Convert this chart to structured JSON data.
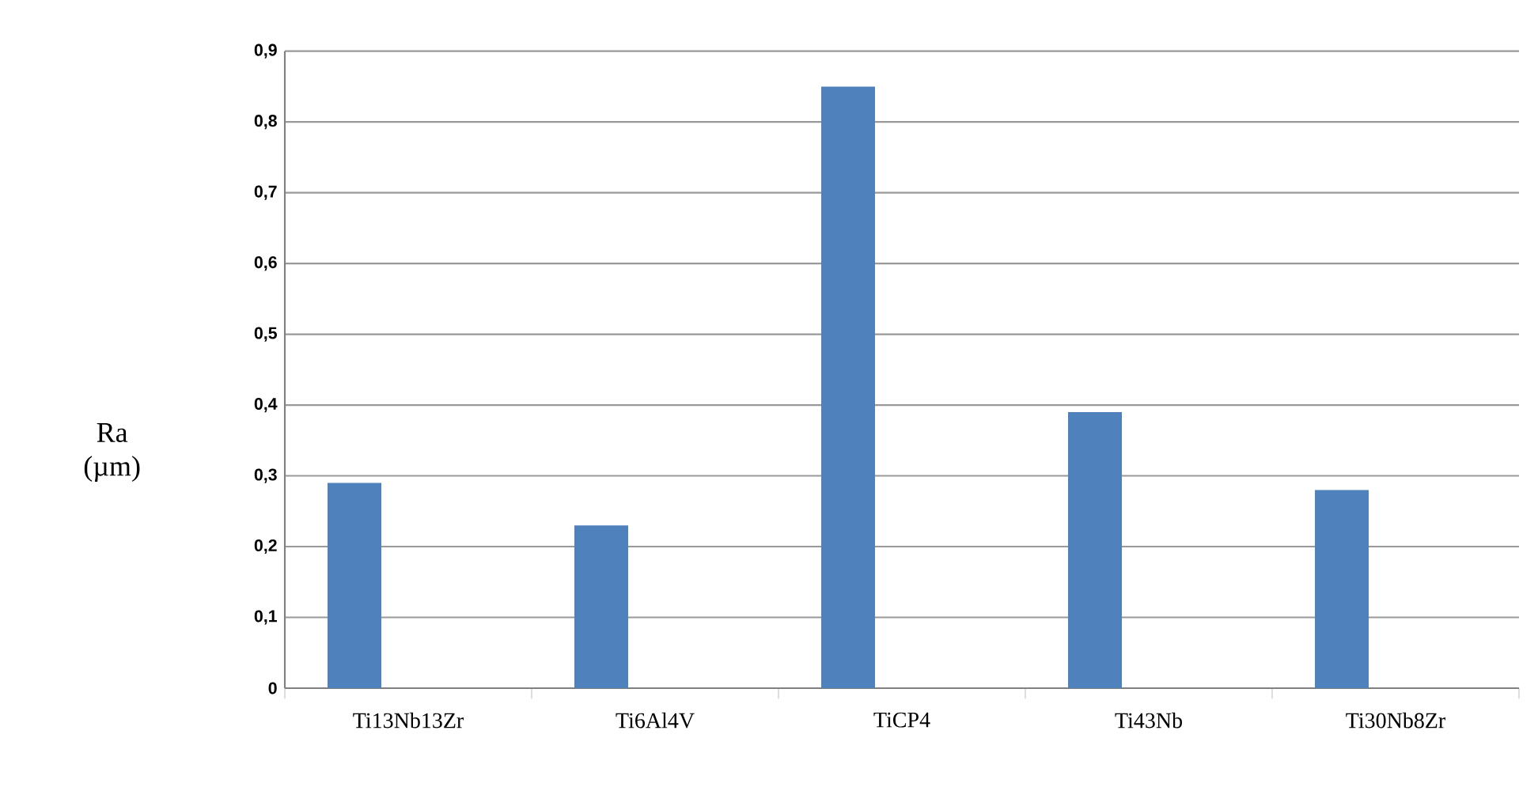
{
  "chart_data": {
    "type": "bar",
    "ylabel": "Ra (µm)",
    "categories": [
      "Ti13Nb13Zr",
      "Ti6Al4V",
      "TiCP4",
      "Ti43Nb",
      "Ti30Nb8Zr"
    ],
    "values": [
      0.29,
      0.23,
      0.85,
      0.39,
      0.28
    ],
    "color": "#4f81bd",
    "ylim": [
      0,
      0.9
    ],
    "yticks": [
      0,
      {
        "value": 0.1,
        "label": "0,1"
      },
      {
        "value": 0.2,
        "label": "0,2"
      },
      {
        "value": 0.3,
        "label": "0,3"
      },
      {
        "value": 0.4,
        "label": "0,4"
      },
      {
        "value": 0.5,
        "label": "0,5"
      },
      {
        "value": 0.6,
        "label": "0,6"
      },
      {
        "value": 0.7,
        "label": "0,7"
      },
      {
        "value": 0.8,
        "label": "0,8"
      },
      {
        "value": 0.9,
        "label": "0,9"
      }
    ],
    "grid": "y"
  }
}
